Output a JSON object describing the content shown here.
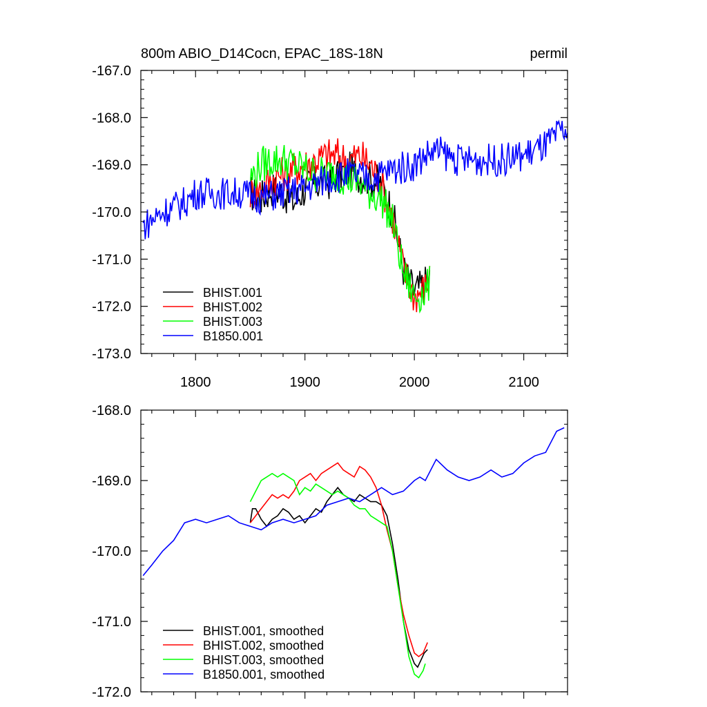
{
  "chart_data": [
    {
      "type": "line",
      "title": "800m ABIO_D14Cocn, EPAC_18S-18N",
      "units": "permil",
      "xlim": [
        1750,
        2140
      ],
      "ylim": [
        -173,
        -167
      ],
      "xticks": [
        1800,
        1900,
        2000,
        2100
      ],
      "xtick_labels": [
        "1800",
        "1900",
        "2000",
        "2100"
      ],
      "yticks": [
        -173,
        -172,
        -171,
        -170,
        -169,
        -168,
        -167
      ],
      "ytick_labels": [
        "-173.0",
        "-172.0",
        "-171.0",
        "-170.0",
        "-169.0",
        "-168.0",
        "-167.0"
      ],
      "legend_position": "bottom-left",
      "series": [
        {
          "name": "BHIST.001",
          "color": "#000000",
          "x": [
            1850,
            1860,
            1870,
            1880,
            1890,
            1900,
            1910,
            1920,
            1930,
            1940,
            1950,
            1960,
            1970,
            1980,
            1990,
            2000,
            2010,
            2014
          ],
          "y": [
            -169.6,
            -169.7,
            -169.5,
            -169.6,
            -169.8,
            -169.5,
            -169.4,
            -169.4,
            -169.2,
            -169.1,
            -169.2,
            -169.3,
            -169.4,
            -170.0,
            -171.2,
            -171.7,
            -171.5,
            -171.4
          ],
          "noise": 0.4
        },
        {
          "name": "BHIST.002",
          "color": "#ff0000",
          "x": [
            1850,
            1860,
            1870,
            1880,
            1890,
            1900,
            1910,
            1920,
            1930,
            1940,
            1950,
            1960,
            1970,
            1980,
            1990,
            2000,
            2010,
            2014
          ],
          "y": [
            -169.6,
            -169.5,
            -169.3,
            -169.2,
            -169.1,
            -169.0,
            -168.9,
            -168.8,
            -168.8,
            -168.9,
            -168.8,
            -169.0,
            -169.4,
            -170.1,
            -171.2,
            -171.8,
            -171.6,
            -171.4
          ],
          "noise": 0.4
        },
        {
          "name": "BHIST.003",
          "color": "#00ff00",
          "x": [
            1850,
            1860,
            1870,
            1880,
            1890,
            1900,
            1910,
            1920,
            1930,
            1940,
            1950,
            1960,
            1970,
            1980,
            1990,
            2000,
            2010,
            2014
          ],
          "y": [
            -169.3,
            -169.0,
            -168.9,
            -168.9,
            -169.0,
            -169.1,
            -169.2,
            -169.2,
            -169.2,
            -169.3,
            -169.4,
            -169.6,
            -169.7,
            -170.2,
            -171.3,
            -171.8,
            -171.7,
            -171.5
          ],
          "noise": 0.4
        },
        {
          "name": "B1850.001",
          "color": "#0000ff",
          "x": [
            1752,
            1770,
            1790,
            1800,
            1820,
            1840,
            1860,
            1880,
            1900,
            1920,
            1940,
            1960,
            1980,
            2000,
            2010,
            2020,
            2040,
            2060,
            2080,
            2100,
            2120,
            2135,
            2140
          ],
          "y": [
            -170.3,
            -170.0,
            -169.8,
            -169.6,
            -169.6,
            -169.6,
            -169.7,
            -169.6,
            -169.5,
            -169.3,
            -169.2,
            -169.3,
            -169.1,
            -169.0,
            -168.8,
            -168.7,
            -168.9,
            -168.9,
            -168.9,
            -168.8,
            -168.6,
            -168.3,
            -168.3
          ],
          "noise": 0.35
        }
      ]
    },
    {
      "type": "line",
      "xlim": [
        1750,
        2140
      ],
      "ylim": [
        -172,
        -168
      ],
      "xticks": [
        1800,
        1900,
        2000,
        2100
      ],
      "yticks": [
        -172,
        -171,
        -170,
        -169,
        -168
      ],
      "ytick_labels": [
        "-172.0",
        "-171.0",
        "-170.0",
        "-169.0",
        "-168.0"
      ],
      "legend_position": "bottom-left",
      "series": [
        {
          "name": "BHIST.001, smoothed",
          "color": "#000000",
          "x": [
            1850,
            1852,
            1855,
            1860,
            1865,
            1870,
            1875,
            1880,
            1885,
            1890,
            1895,
            1900,
            1905,
            1910,
            1915,
            1920,
            1925,
            1930,
            1935,
            1940,
            1945,
            1950,
            1955,
            1960,
            1965,
            1970,
            1975,
            1980,
            1985,
            1990,
            1995,
            2000,
            2003,
            2006,
            2009,
            2012
          ],
          "y": [
            -169.6,
            -169.4,
            -169.4,
            -169.55,
            -169.65,
            -169.55,
            -169.5,
            -169.4,
            -169.45,
            -169.55,
            -169.5,
            -169.6,
            -169.5,
            -169.4,
            -169.45,
            -169.3,
            -169.2,
            -169.1,
            -169.2,
            -169.25,
            -169.3,
            -169.2,
            -169.25,
            -169.3,
            -169.3,
            -169.35,
            -169.5,
            -169.9,
            -170.4,
            -171.0,
            -171.4,
            -171.6,
            -171.65,
            -171.55,
            -171.45,
            -171.4
          ]
        },
        {
          "name": "BHIST.002, smoothed",
          "color": "#ff0000",
          "x": [
            1850,
            1855,
            1860,
            1865,
            1870,
            1875,
            1880,
            1885,
            1890,
            1895,
            1900,
            1905,
            1910,
            1915,
            1920,
            1925,
            1930,
            1935,
            1940,
            1945,
            1950,
            1955,
            1960,
            1965,
            1970,
            1975,
            1980,
            1985,
            1990,
            1995,
            2000,
            2004,
            2008,
            2012
          ],
          "y": [
            -169.6,
            -169.5,
            -169.4,
            -169.3,
            -169.2,
            -169.25,
            -169.2,
            -169.25,
            -169.15,
            -169.0,
            -168.95,
            -168.9,
            -169.0,
            -168.9,
            -168.85,
            -168.8,
            -168.75,
            -168.85,
            -168.9,
            -168.95,
            -168.8,
            -168.85,
            -168.95,
            -169.1,
            -169.35,
            -169.7,
            -170.0,
            -170.5,
            -170.9,
            -171.2,
            -171.45,
            -171.5,
            -171.45,
            -171.3
          ]
        },
        {
          "name": "BHIST.003, smoothed",
          "color": "#00ff00",
          "x": [
            1850,
            1855,
            1860,
            1865,
            1870,
            1875,
            1880,
            1885,
            1890,
            1895,
            1900,
            1905,
            1910,
            1915,
            1920,
            1925,
            1930,
            1935,
            1940,
            1945,
            1950,
            1955,
            1960,
            1965,
            1970,
            1975,
            1980,
            1985,
            1990,
            1995,
            2000,
            2004,
            2008,
            2010
          ],
          "y": [
            -169.3,
            -169.15,
            -169.0,
            -168.95,
            -168.9,
            -168.95,
            -168.9,
            -168.95,
            -169.0,
            -169.2,
            -169.1,
            -169.15,
            -169.05,
            -169.1,
            -169.15,
            -169.2,
            -169.15,
            -169.2,
            -169.25,
            -169.35,
            -169.4,
            -169.4,
            -169.5,
            -169.55,
            -169.6,
            -169.65,
            -170.0,
            -170.5,
            -171.0,
            -171.5,
            -171.75,
            -171.8,
            -171.7,
            -171.6
          ]
        },
        {
          "name": "B1850.001, smoothed",
          "color": "#0000ff",
          "x": [
            1752,
            1760,
            1770,
            1780,
            1790,
            1800,
            1810,
            1820,
            1830,
            1840,
            1850,
            1860,
            1870,
            1880,
            1890,
            1900,
            1910,
            1920,
            1930,
            1940,
            1950,
            1960,
            1970,
            1980,
            1990,
            2000,
            2005,
            2010,
            2020,
            2030,
            2040,
            2050,
            2060,
            2070,
            2080,
            2090,
            2100,
            2110,
            2120,
            2130,
            2137
          ],
          "y": [
            -170.35,
            -170.2,
            -170.0,
            -169.85,
            -169.6,
            -169.55,
            -169.6,
            -169.55,
            -169.5,
            -169.6,
            -169.65,
            -169.7,
            -169.6,
            -169.55,
            -169.6,
            -169.55,
            -169.5,
            -169.35,
            -169.3,
            -169.25,
            -169.3,
            -169.2,
            -169.1,
            -169.2,
            -169.15,
            -169.0,
            -168.95,
            -169.0,
            -168.7,
            -168.85,
            -168.95,
            -169.0,
            -168.95,
            -168.85,
            -168.95,
            -168.9,
            -168.75,
            -168.65,
            -168.6,
            -168.3,
            -168.25
          ]
        }
      ]
    }
  ]
}
